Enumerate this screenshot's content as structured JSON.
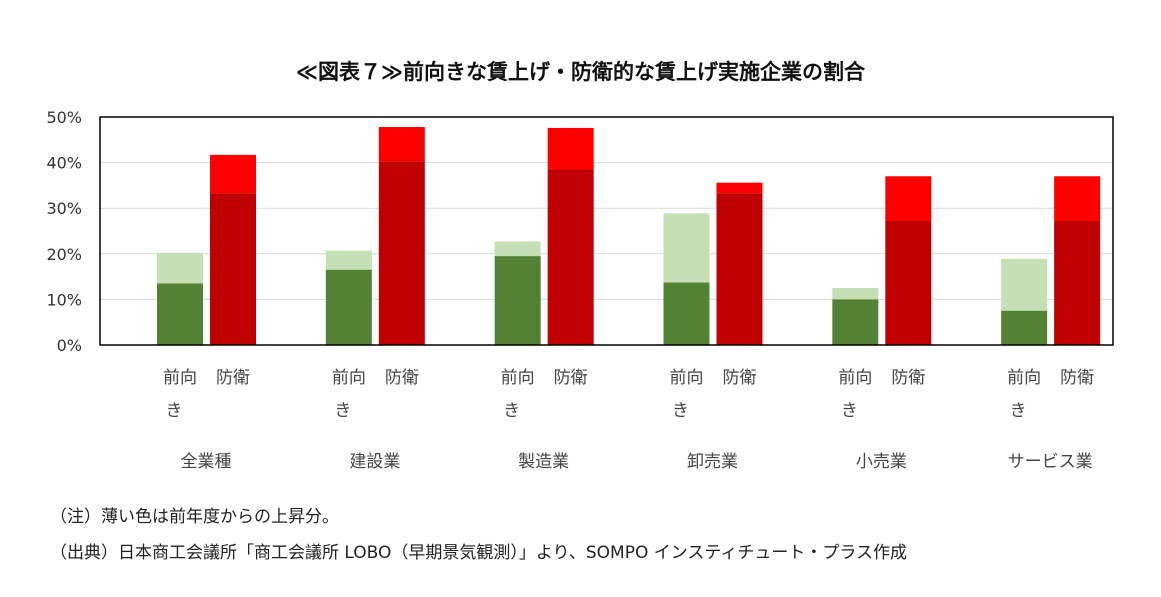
{
  "chart_data": {
    "type": "bar",
    "stacked": true,
    "title": "≪図表７≫前向きな賃上げ・防衛的な賃上げ実施企業の割合",
    "ylim": [
      0,
      0.5
    ],
    "yticks": [
      "0%",
      "10%",
      "20%",
      "30%",
      "40%",
      "50%"
    ],
    "grid": true,
    "groups": [
      "全業種",
      "建設業",
      "製造業",
      "卸売業",
      "小売業",
      "サービス業"
    ],
    "sub_categories": [
      {
        "label_line1": "前向",
        "label_line2": "き"
      },
      {
        "label_line1": "防衛",
        "label_line2": ""
      }
    ],
    "series": [
      {
        "category": "前向き",
        "base": [
          0.135,
          0.165,
          0.195,
          0.137,
          0.1,
          0.075
        ],
        "increase": [
          0.067,
          0.042,
          0.032,
          0.152,
          0.025,
          0.114
        ],
        "base_color": "#548235",
        "increase_color": "#c5e0b4"
      },
      {
        "category": "防衛",
        "base": [
          0.333,
          0.403,
          0.385,
          0.333,
          0.272,
          0.272
        ],
        "increase": [
          0.084,
          0.075,
          0.091,
          0.023,
          0.098,
          0.098
        ],
        "base_color": "#c00000",
        "increase_color": "#ff0000"
      }
    ]
  },
  "notes": {
    "note1": "（注）薄い色は前年度からの上昇分。",
    "source": "（出典）日本商工会議所「商工会議所 LOBO（早期景気観測）」より、SOMPO インスティチュート・プラス作成"
  }
}
